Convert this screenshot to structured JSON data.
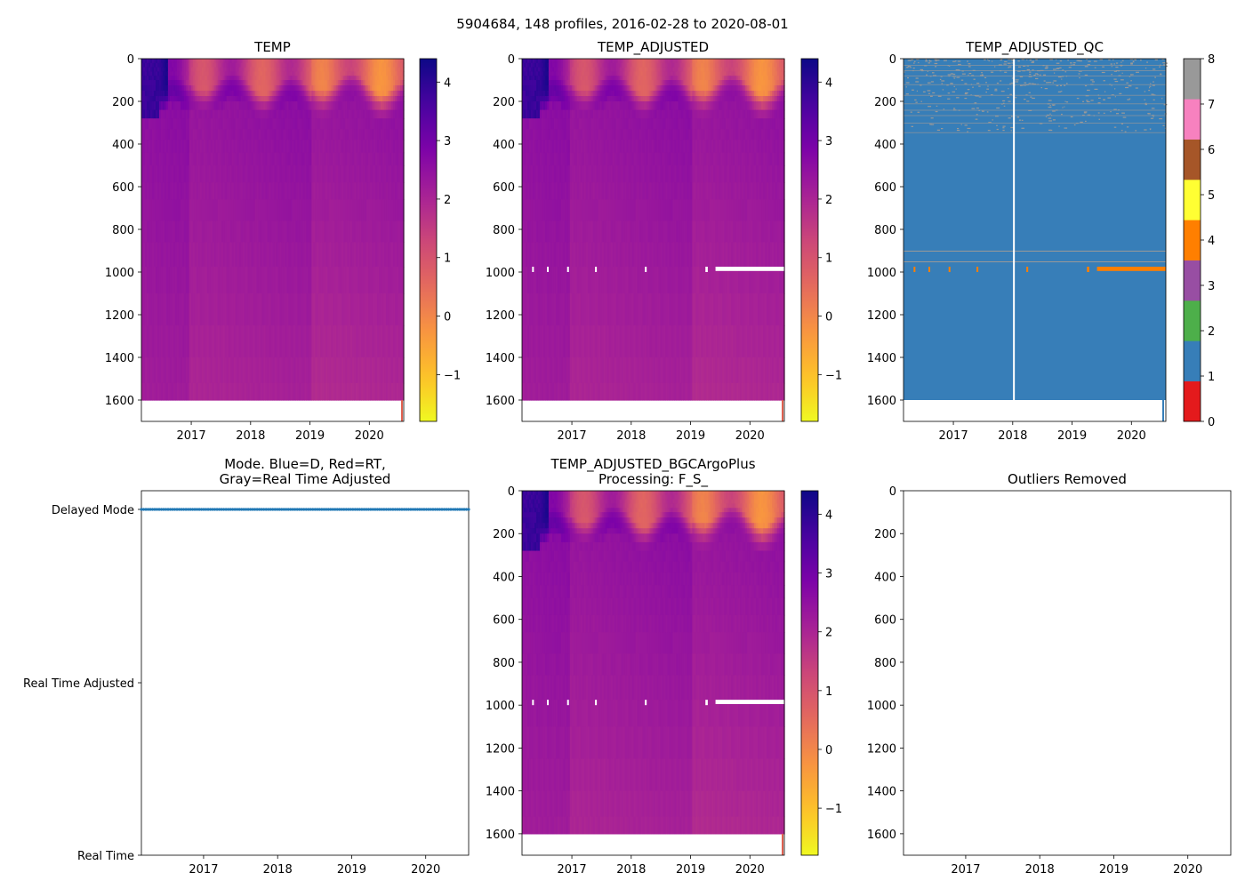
{
  "figure": {
    "suptitle": "5904684, 148 profiles, 2016-02-28 to 2020-08-01"
  },
  "chart_data": [
    {
      "id": "temp",
      "type": "heatmap",
      "title": "TEMP",
      "xlabel": "",
      "ylabel": "",
      "x_range": [
        2016.16,
        2020.58
      ],
      "y_range": [
        1700,
        0
      ],
      "x_ticks": [
        2017,
        2018,
        2019,
        2020
      ],
      "x_tick_labels": [
        "2017",
        "2018",
        "2019",
        "2020"
      ],
      "y_ticks": [
        0,
        200,
        400,
        600,
        800,
        1000,
        1200,
        1400,
        1600
      ],
      "y_tick_labels": [
        "0",
        "200",
        "400",
        "600",
        "800",
        "1000",
        "1200",
        "1400",
        "1600"
      ],
      "max_depth": 1600,
      "colormap": "plasma_r",
      "colorbar": {
        "vmin": -1.8,
        "vmax": 4.4,
        "ticks": [
          -1,
          0,
          1,
          2,
          3,
          4
        ],
        "tick_labels": [
          "−1",
          "0",
          "1",
          "2",
          "3",
          "4"
        ]
      },
      "missing_bands": []
    },
    {
      "id": "temp_adjusted",
      "type": "heatmap",
      "title": "TEMP_ADJUSTED",
      "xlabel": "",
      "ylabel": "",
      "x_range": [
        2016.16,
        2020.58
      ],
      "y_range": [
        1700,
        0
      ],
      "x_ticks": [
        2017,
        2018,
        2019,
        2020
      ],
      "x_tick_labels": [
        "2017",
        "2018",
        "2019",
        "2020"
      ],
      "y_ticks": [
        0,
        200,
        400,
        600,
        800,
        1000,
        1200,
        1400,
        1600
      ],
      "y_tick_labels": [
        "0",
        "200",
        "400",
        "600",
        "800",
        "1000",
        "1200",
        "1400",
        "1600"
      ],
      "max_depth": 1600,
      "colormap": "plasma_r",
      "colorbar": {
        "vmin": -1.8,
        "vmax": 4.4,
        "ticks": [
          -1,
          0,
          1,
          2,
          3,
          4
        ],
        "tick_labels": [
          "−1",
          "0",
          "1",
          "2",
          "3",
          "4"
        ]
      },
      "missing_bands": [
        {
          "t0": 2019.42,
          "t1": 2020.58,
          "d0": 975,
          "d1": 995
        },
        {
          "t0": 2016.33,
          "t1": 2016.36,
          "d0": 975,
          "d1": 1000
        },
        {
          "t0": 2016.58,
          "t1": 2016.61,
          "d0": 975,
          "d1": 1000
        },
        {
          "t0": 2016.92,
          "t1": 2016.95,
          "d0": 975,
          "d1": 1000
        },
        {
          "t0": 2017.39,
          "t1": 2017.42,
          "d0": 975,
          "d1": 1000
        },
        {
          "t0": 2018.23,
          "t1": 2018.26,
          "d0": 975,
          "d1": 1000
        },
        {
          "t0": 2019.25,
          "t1": 2019.29,
          "d0": 975,
          "d1": 1000
        }
      ]
    },
    {
      "id": "temp_adjusted_qc",
      "type": "heatmap",
      "title": "TEMP_ADJUSTED_QC",
      "xlabel": "",
      "ylabel": "",
      "x_range": [
        2016.16,
        2020.58
      ],
      "y_range": [
        1700,
        0
      ],
      "x_ticks": [
        2017,
        2018,
        2019,
        2020
      ],
      "x_tick_labels": [
        "2017",
        "2018",
        "2019",
        "2020"
      ],
      "y_ticks": [
        0,
        200,
        400,
        600,
        800,
        1000,
        1200,
        1400,
        1600
      ],
      "y_tick_labels": [
        "0",
        "200",
        "400",
        "600",
        "800",
        "1000",
        "1200",
        "1400",
        "1600"
      ],
      "max_depth": 1600,
      "colormap": "qc_flags",
      "qc_colors": [
        "#e41a1c",
        "#377eb8",
        "#4daf4a",
        "#984ea3",
        "#ff7f00",
        "#ffff33",
        "#a65628",
        "#f781bf",
        "#999999"
      ],
      "colorbar": {
        "vmin": 0,
        "vmax": 8,
        "ticks": [
          0,
          1,
          2,
          3,
          4,
          5,
          6,
          7,
          8
        ],
        "tick_labels": [
          "0",
          "1",
          "2",
          "3",
          "4",
          "5",
          "6",
          "7",
          "8"
        ]
      },
      "flag4_bands": [
        {
          "t0": 2019.42,
          "t1": 2020.58,
          "d0": 975,
          "d1": 995
        },
        {
          "t0": 2016.33,
          "t1": 2016.36,
          "d0": 975,
          "d1": 1000
        },
        {
          "t0": 2016.58,
          "t1": 2016.61,
          "d0": 975,
          "d1": 1000
        },
        {
          "t0": 2016.92,
          "t1": 2016.95,
          "d0": 975,
          "d1": 1000
        },
        {
          "t0": 2017.39,
          "t1": 2017.42,
          "d0": 975,
          "d1": 1000
        },
        {
          "t0": 2018.23,
          "t1": 2018.26,
          "d0": 975,
          "d1": 1000
        },
        {
          "t0": 2019.25,
          "t1": 2019.29,
          "d0": 975,
          "d1": 1000
        }
      ],
      "flag8_depth_lines": [
        900,
        950
      ],
      "missing_profile_time": 2018.02
    },
    {
      "id": "mode",
      "type": "scatter",
      "title": "Mode. Blue=D, Red=RT,\nGray=Real Time Adjusted",
      "xlabel": "",
      "ylabel": "",
      "x_range": [
        2016.16,
        2020.58
      ],
      "y_range": [
        0,
        2
      ],
      "x_ticks": [
        2017,
        2018,
        2019,
        2020
      ],
      "x_tick_labels": [
        "2017",
        "2018",
        "2019",
        "2020"
      ],
      "y_ticks": [
        0,
        1,
        2
      ],
      "y_tick_labels": [
        "Delayed Mode",
        "Real Time Adjusted",
        "Real Time"
      ],
      "series": [
        {
          "name": "D",
          "color": "#1f77b4",
          "y": 0,
          "count": 148,
          "t_start": 2016.16,
          "t_end": 2020.58
        }
      ]
    },
    {
      "id": "bgc",
      "type": "heatmap",
      "title": "TEMP_ADJUSTED_BGCArgoPlus\nProcessing: F_S_",
      "xlabel": "",
      "ylabel": "",
      "x_range": [
        2016.16,
        2020.58
      ],
      "y_range": [
        1700,
        0
      ],
      "x_ticks": [
        2017,
        2018,
        2019,
        2020
      ],
      "x_tick_labels": [
        "2017",
        "2018",
        "2019",
        "2020"
      ],
      "y_ticks": [
        0,
        200,
        400,
        600,
        800,
        1000,
        1200,
        1400,
        1600
      ],
      "y_tick_labels": [
        "0",
        "200",
        "400",
        "600",
        "800",
        "1000",
        "1200",
        "1400",
        "1600"
      ],
      "max_depth": 1600,
      "colormap": "plasma_r",
      "colorbar": {
        "vmin": -1.8,
        "vmax": 4.4,
        "ticks": [
          -1,
          0,
          1,
          2,
          3,
          4
        ],
        "tick_labels": [
          "−1",
          "0",
          "1",
          "2",
          "3",
          "4"
        ]
      },
      "missing_bands": [
        {
          "t0": 2019.42,
          "t1": 2020.58,
          "d0": 975,
          "d1": 995
        },
        {
          "t0": 2016.33,
          "t1": 2016.36,
          "d0": 975,
          "d1": 1000
        },
        {
          "t0": 2016.58,
          "t1": 2016.61,
          "d0": 975,
          "d1": 1000
        },
        {
          "t0": 2016.92,
          "t1": 2016.95,
          "d0": 975,
          "d1": 1000
        },
        {
          "t0": 2017.39,
          "t1": 2017.42,
          "d0": 975,
          "d1": 1000
        },
        {
          "t0": 2018.23,
          "t1": 2018.26,
          "d0": 975,
          "d1": 1000
        },
        {
          "t0": 2019.25,
          "t1": 2019.29,
          "d0": 975,
          "d1": 1000
        }
      ]
    },
    {
      "id": "outliers",
      "type": "scatter",
      "title": "Outliers Removed",
      "xlabel": "",
      "ylabel": "",
      "x_range": [
        2016.16,
        2020.58
      ],
      "y_range": [
        1700,
        0
      ],
      "x_ticks": [
        2017,
        2018,
        2019,
        2020
      ],
      "x_tick_labels": [
        "2017",
        "2018",
        "2019",
        "2020"
      ],
      "y_ticks": [
        0,
        200,
        400,
        600,
        800,
        1000,
        1200,
        1400,
        1600
      ],
      "y_tick_labels": [
        "0",
        "200",
        "400",
        "600",
        "800",
        "1000",
        "1200",
        "1400",
        "1600"
      ],
      "series": []
    }
  ]
}
